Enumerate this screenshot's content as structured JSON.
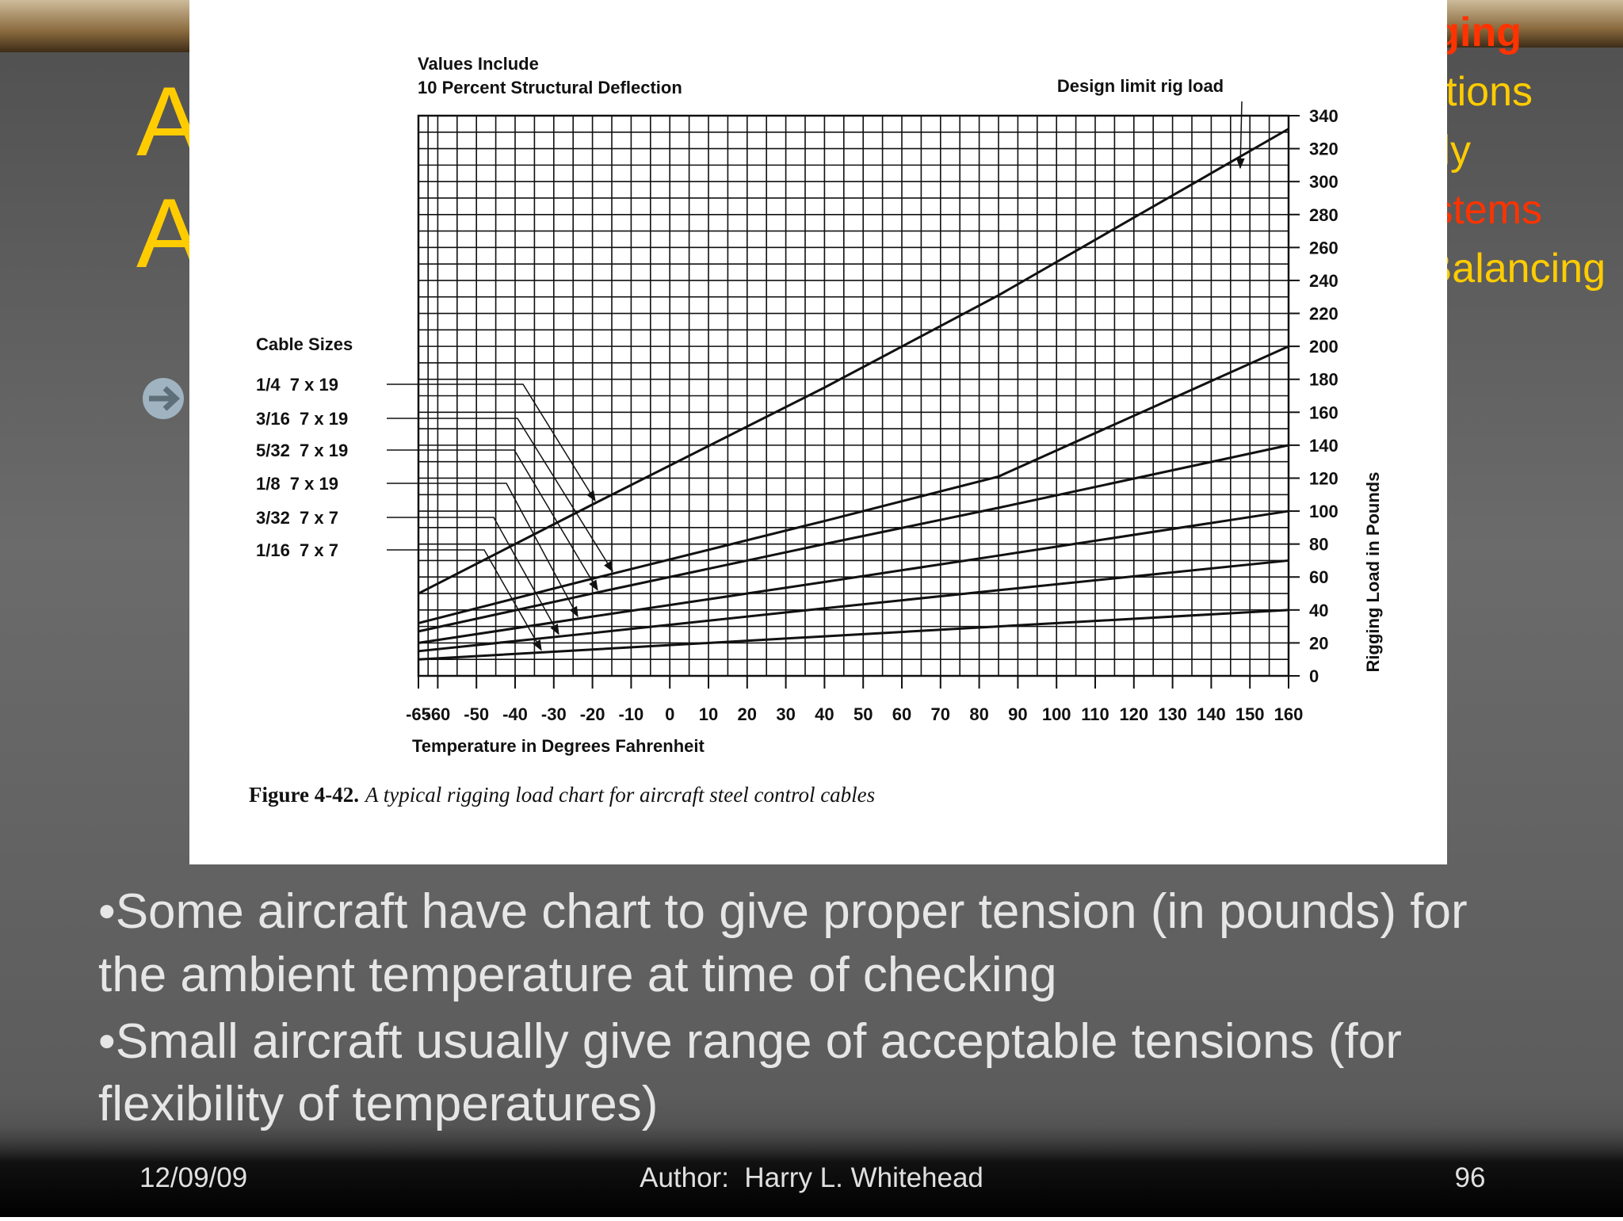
{
  "slide": {
    "title_lines": [
      "A",
      "A"
    ],
    "menu": [
      "ging",
      "tions",
      "ly",
      "stems",
      "Balancing"
    ],
    "text_lines": [
      "•Some aircraft have chart to give proper tension (in pounds) for",
      "the ambient temperature at time of checking",
      "•Small aircraft usually give range of acceptable tensions (for",
      "flexibility of temperatures)"
    ],
    "footer": {
      "date": "12/09/09",
      "author": "Author:  Harry L. Whitehead",
      "page": "96"
    }
  },
  "chart_data": {
    "type": "line",
    "annotations": [
      "Values Include",
      "10 Percent Structural Deflection",
      "Design limit rig load"
    ],
    "legend_title": "Cable Sizes",
    "x_label": "Temperature in Degrees Fahrenheit",
    "y_label": "Rigging Load in Pounds",
    "caption": {
      "label": "Figure 4-42.",
      "text": "A typical rigging load chart for aircraft steel control cables"
    },
    "x": [
      -65,
      -20,
      40,
      85,
      160
    ],
    "series": [
      {
        "name": "1/4  7 x 19",
        "color": "#111111",
        "values": [
          50,
          104,
          175,
          231,
          332
        ]
      },
      {
        "name": "3/16  7 x 19",
        "color": "#111111",
        "values": [
          32,
          59,
          94,
          121,
          200
        ]
      },
      {
        "name": "5/32  7 x 19",
        "color": "#111111",
        "values": [
          27,
          50,
          80,
          102,
          140
        ]
      },
      {
        "name": "1/8  7 x 19",
        "color": "#111111",
        "values": [
          20,
          36,
          57,
          73,
          100
        ]
      },
      {
        "name": "3/32  7 x 7",
        "color": "#111111",
        "values": [
          15,
          26,
          41,
          52,
          70
        ]
      },
      {
        "name": "1/16  7 x 7",
        "color": "#111111",
        "values": [
          10,
          16,
          24,
          30,
          40
        ]
      }
    ],
    "xlim": [
      -65,
      160
    ],
    "xticks": [
      -65,
      -60,
      -50,
      -40,
      -30,
      -20,
      -10,
      0,
      10,
      20,
      30,
      40,
      50,
      60,
      70,
      80,
      90,
      100,
      110,
      120,
      130,
      140,
      150,
      160
    ],
    "ylim": [
      0,
      340
    ],
    "yticks": [
      0,
      20,
      40,
      60,
      80,
      100,
      120,
      140,
      160,
      180,
      200,
      220,
      240,
      260,
      280,
      300,
      320,
      340
    ],
    "y_axis_side": "right",
    "grid": true
  }
}
